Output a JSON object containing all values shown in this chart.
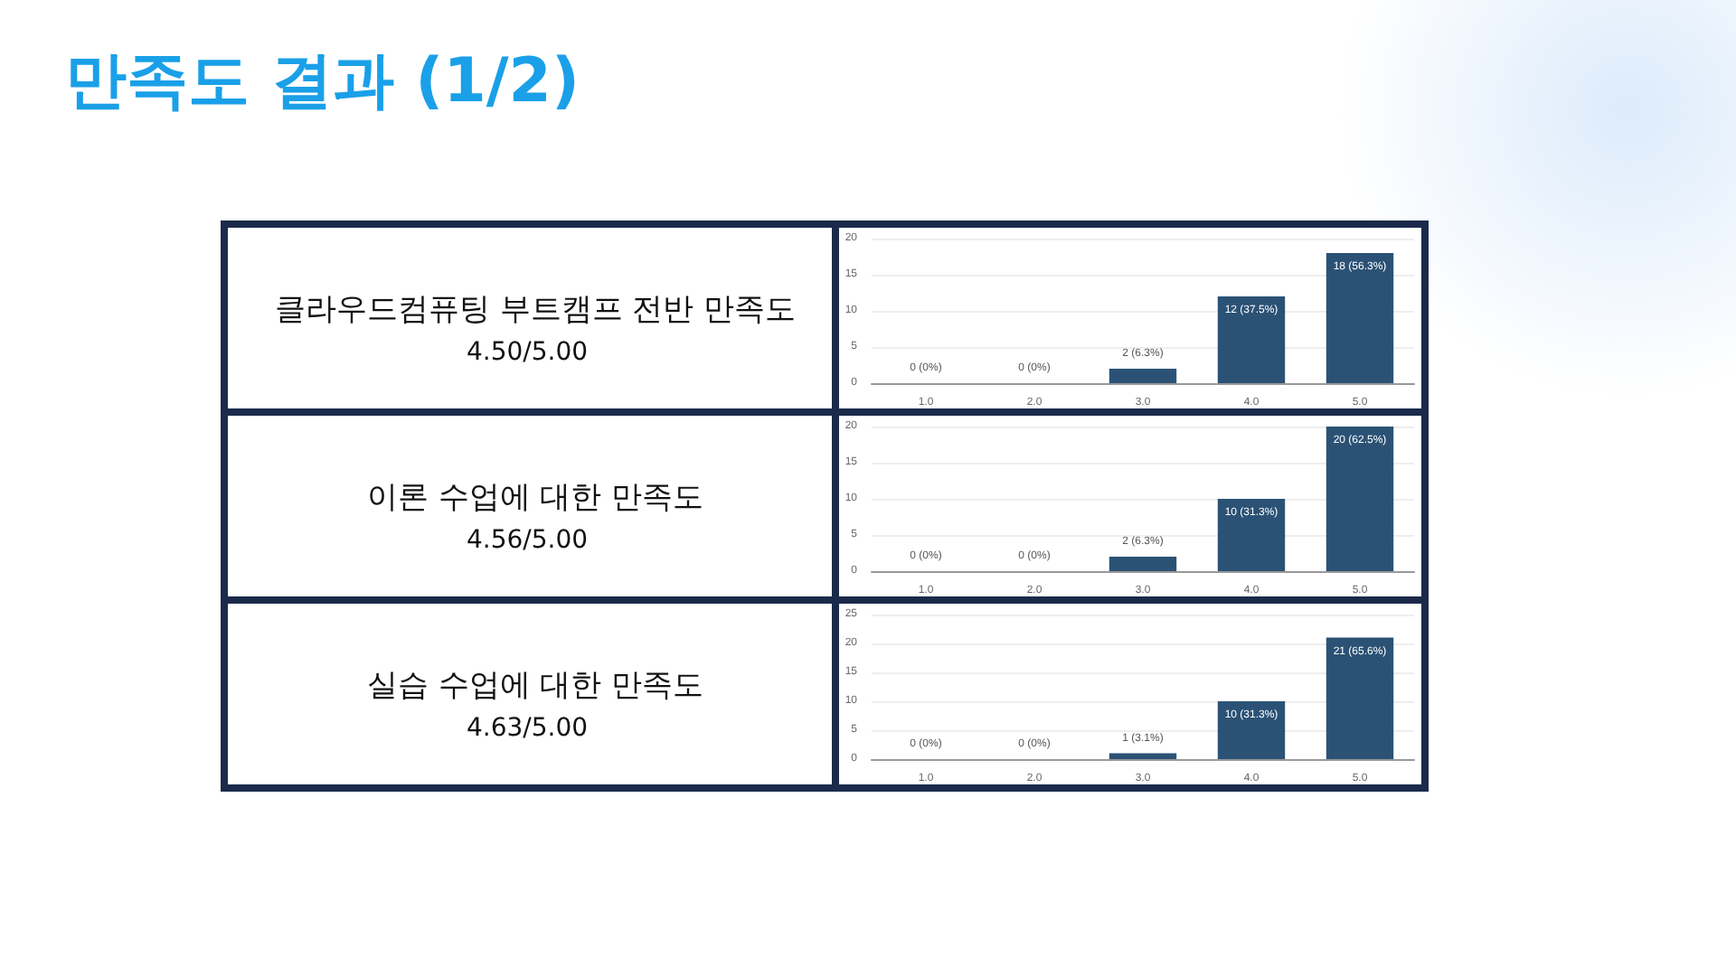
{
  "chart_data": [
    {
      "type": "other",
      "title": "만족도 결과 (1/2)"
    },
    {
      "type": "bar",
      "title": "클라우드컴퓨팅 부트캠프 전반 만족도",
      "annotations": [
        "4.50/5.00"
      ],
      "categories": [
        "1.0",
        "2.0",
        "3.0",
        "4.0",
        "5.0"
      ],
      "values": [
        0,
        0,
        2,
        12,
        18
      ],
      "value_labels": [
        "0 (0%)",
        "0 (0%)",
        "2 (6.3%)",
        "12 (37.5%)",
        "18 (56.3%)"
      ],
      "color": "#2b5275",
      "ylim": [
        0,
        20
      ],
      "yticks": [
        0,
        5,
        10,
        15,
        20
      ],
      "grid": "y"
    },
    {
      "type": "bar",
      "title": "이론 수업에 대한 만족도",
      "annotations": [
        "4.56/5.00"
      ],
      "categories": [
        "1.0",
        "2.0",
        "3.0",
        "4.0",
        "5.0"
      ],
      "values": [
        0,
        0,
        2,
        10,
        20
      ],
      "value_labels": [
        "0 (0%)",
        "0 (0%)",
        "2 (6.3%)",
        "10 (31.3%)",
        "20 (62.5%)"
      ],
      "color": "#2b5275",
      "ylim": [
        0,
        20
      ],
      "yticks": [
        0,
        5,
        10,
        15,
        20
      ],
      "grid": "y"
    },
    {
      "type": "bar",
      "title": "실습 수업에 대한 만족도",
      "annotations": [
        "4.63/5.00"
      ],
      "categories": [
        "1.0",
        "2.0",
        "3.0",
        "4.0",
        "5.0"
      ],
      "values": [
        0,
        0,
        1,
        10,
        21
      ],
      "value_labels": [
        "0 (0%)",
        "0 (0%)",
        "1 (3.1%)",
        "10 (31.3%)",
        "21 (65.6%)"
      ],
      "color": "#2b5275",
      "ylim": [
        0,
        25
      ],
      "yticks": [
        0,
        5,
        10,
        15,
        20,
        25
      ],
      "grid": "y"
    }
  ]
}
